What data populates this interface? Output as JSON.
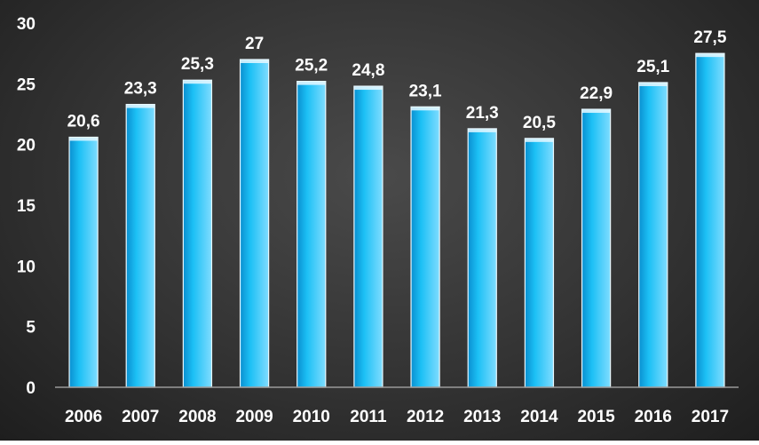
{
  "chart_data": {
    "type": "bar",
    "title": "",
    "xlabel": "",
    "ylabel": "",
    "categories": [
      "2006",
      "2007",
      "2008",
      "2009",
      "2010",
      "2011",
      "2012",
      "2013",
      "2014",
      "2015",
      "2016",
      "2017"
    ],
    "values": [
      20.6,
      23.3,
      25.3,
      27,
      25.2,
      24.8,
      23.1,
      21.3,
      20.5,
      22.9,
      25.1,
      27.5
    ],
    "value_labels": [
      "20,6",
      "23,3",
      "25,3",
      "27",
      "25,2",
      "24,8",
      "23,1",
      "21,3",
      "20,5",
      "22,9",
      "25,1",
      "27,5"
    ],
    "ylim": [
      0,
      30
    ],
    "yticks": [
      "0",
      "5",
      "10",
      "15",
      "20",
      "25",
      "30"
    ],
    "ytick_values": [
      0,
      5,
      10,
      15,
      20,
      25,
      30
    ],
    "grid": false,
    "legend": "none",
    "colors": {
      "bar_top": "#7fdcff",
      "bar_mid": "#1cc0f5",
      "bar_bottom": "#0a8fd0",
      "bar_edge": "#e8f8ff",
      "axis": "#9a9a9a",
      "text": "#ffffff"
    }
  }
}
